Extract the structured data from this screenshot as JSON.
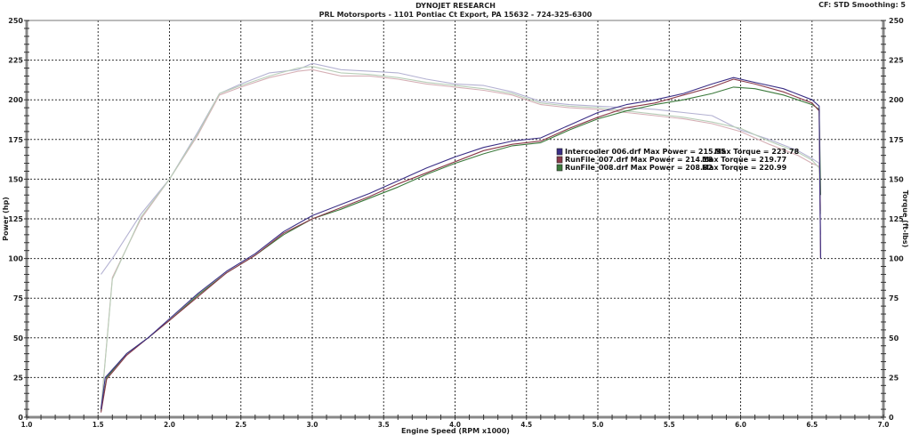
{
  "header": {
    "title": "DYNOJET RESEARCH",
    "subtitle": "PRL Motorsports - 1101 Pontiac Ct Export, PA 15632 - 724-325-6300",
    "cf_info": "CF: STD  Smoothing: 5"
  },
  "colors": {
    "run1": "#3b2f86",
    "run2": "#8a3a4a",
    "run3": "#3c7a3c",
    "run1_torque": "#b4b2d2",
    "run2_torque": "#d6b0b6",
    "run3_torque": "#b8ceb8",
    "grid": "#333333",
    "frame": "#888888"
  },
  "chart_data": {
    "type": "line",
    "title": "DYNOJET RESEARCH",
    "subtitle": "PRL Motorsports - 1101 Pontiac Ct Export, PA 15632 - 724-325-6300",
    "xlabel": "Engine Speed (RPM x1000)",
    "ylabel_left": "Power (hp)",
    "ylabel_right": "Torque (ft-lbs)",
    "xlim": [
      1.0,
      7.0
    ],
    "ylim": [
      0,
      250
    ],
    "x_ticks": [
      "1.0",
      "1.5",
      "2.0",
      "2.5",
      "3.0",
      "3.5",
      "4.0",
      "4.5",
      "5.0",
      "5.5",
      "6.0",
      "6.5",
      "7.0"
    ],
    "y_ticks": [
      "0",
      "25",
      "50",
      "75",
      "100",
      "125",
      "150",
      "175",
      "200",
      "225",
      "250"
    ],
    "grid": true,
    "legend_position": "center-right",
    "legend": [
      {
        "label": "Intercooler 006.drf Max Power = 215.55",
        "torque_label": "Max Torque = 223.78"
      },
      {
        "label": "RunFile_007.drf Max Power = 214.18",
        "torque_label": "Max Torque = 219.77"
      },
      {
        "label": "RunFile_008.drf Max Power = 208.82",
        "torque_label": "Max Torque = 220.99"
      }
    ],
    "series": [
      {
        "name": "Intercooler 006.drf Power",
        "x": [
          1.52,
          1.55,
          1.7,
          1.85,
          2.0,
          2.2,
          2.4,
          2.6,
          2.8,
          3.0,
          3.2,
          3.4,
          3.6,
          3.8,
          4.0,
          4.2,
          4.4,
          4.6,
          4.8,
          5.0,
          5.2,
          5.4,
          5.6,
          5.8,
          5.95,
          6.1,
          6.3,
          6.5,
          6.55,
          6.56
        ],
        "values": [
          5,
          25,
          40,
          50,
          62,
          78,
          92,
          103,
          117,
          127,
          134,
          141,
          149,
          157,
          164,
          170,
          174,
          176,
          184,
          192,
          197,
          200,
          204,
          210,
          214,
          211,
          207,
          200,
          196,
          100
        ]
      },
      {
        "name": "RunFile_007.drf Power",
        "x": [
          1.52,
          1.56,
          1.7,
          1.85,
          2.0,
          2.2,
          2.4,
          2.6,
          2.8,
          3.0,
          3.2,
          3.4,
          3.6,
          3.8,
          4.0,
          4.2,
          4.4,
          4.6,
          4.8,
          5.0,
          5.2,
          5.4,
          5.6,
          5.8,
          5.95,
          6.1,
          6.3,
          6.5,
          6.55,
          6.56
        ],
        "values": [
          3,
          24,
          39,
          50,
          61,
          76,
          91,
          102,
          116,
          125,
          132,
          139,
          147,
          154,
          161,
          168,
          172,
          174,
          182,
          189,
          195,
          198,
          203,
          208,
          213,
          210,
          205,
          198,
          193,
          100
        ]
      },
      {
        "name": "RunFile_008.drf Power",
        "x": [
          1.52,
          1.56,
          1.7,
          1.85,
          2.0,
          2.2,
          2.4,
          2.6,
          2.8,
          3.0,
          3.2,
          3.4,
          3.6,
          3.8,
          4.0,
          4.2,
          4.4,
          4.6,
          4.8,
          5.0,
          5.2,
          5.4,
          5.6,
          5.8,
          5.95,
          6.1,
          6.3,
          6.5,
          6.55,
          6.56
        ],
        "values": [
          4,
          25,
          40,
          50,
          61,
          77,
          91,
          102,
          115,
          125,
          131,
          138,
          145,
          153,
          160,
          166,
          171,
          173,
          181,
          188,
          193,
          197,
          200,
          204,
          208,
          207,
          203,
          197,
          194,
          140
        ]
      },
      {
        "name": "Intercooler 006.drf Torque",
        "x": [
          1.52,
          1.6,
          1.8,
          2.0,
          2.2,
          2.35,
          2.5,
          2.7,
          2.9,
          3.0,
          3.2,
          3.4,
          3.6,
          3.8,
          4.0,
          4.2,
          4.4,
          4.6,
          4.8,
          5.0,
          5.2,
          5.4,
          5.6,
          5.8,
          6.0,
          6.2,
          6.4,
          6.5,
          6.55,
          6.56
        ],
        "values": [
          90,
          100,
          128,
          150,
          180,
          204,
          210,
          217,
          219,
          223,
          219,
          218,
          217,
          213,
          210,
          209,
          205,
          199,
          197,
          196,
          195,
          194,
          192,
          190,
          181,
          175,
          168,
          163,
          160,
          115
        ]
      },
      {
        "name": "RunFile_007.drf Torque",
        "x": [
          1.52,
          1.6,
          1.8,
          2.0,
          2.2,
          2.35,
          2.5,
          2.7,
          2.9,
          3.0,
          3.2,
          3.4,
          3.6,
          3.8,
          4.0,
          4.2,
          4.4,
          4.6,
          4.8,
          5.0,
          5.2,
          5.4,
          5.6,
          5.8,
          6.0,
          6.2,
          6.4,
          6.5,
          6.55,
          6.56
        ],
        "values": [
          5,
          88,
          125,
          150,
          178,
          203,
          208,
          214,
          218,
          219,
          215,
          215,
          213,
          210,
          208,
          206,
          203,
          197,
          195,
          194,
          192,
          190,
          188,
          185,
          180,
          172,
          165,
          160,
          158,
          130
        ]
      },
      {
        "name": "RunFile_008.drf Torque",
        "x": [
          1.52,
          1.6,
          1.8,
          2.0,
          2.2,
          2.35,
          2.5,
          2.7,
          2.9,
          3.0,
          3.2,
          3.4,
          3.6,
          3.8,
          4.0,
          4.2,
          4.4,
          4.6,
          4.8,
          5.0,
          5.2,
          5.4,
          5.6,
          5.8,
          6.0,
          6.2,
          6.4,
          6.5,
          6.55,
          6.56
        ],
        "values": [
          5,
          87,
          126,
          150,
          179,
          204,
          209,
          215,
          220,
          221,
          217,
          216,
          214,
          211,
          209,
          207,
          204,
          198,
          196,
          195,
          193,
          191,
          189,
          186,
          182,
          174,
          167,
          162,
          157,
          128
        ]
      }
    ]
  }
}
